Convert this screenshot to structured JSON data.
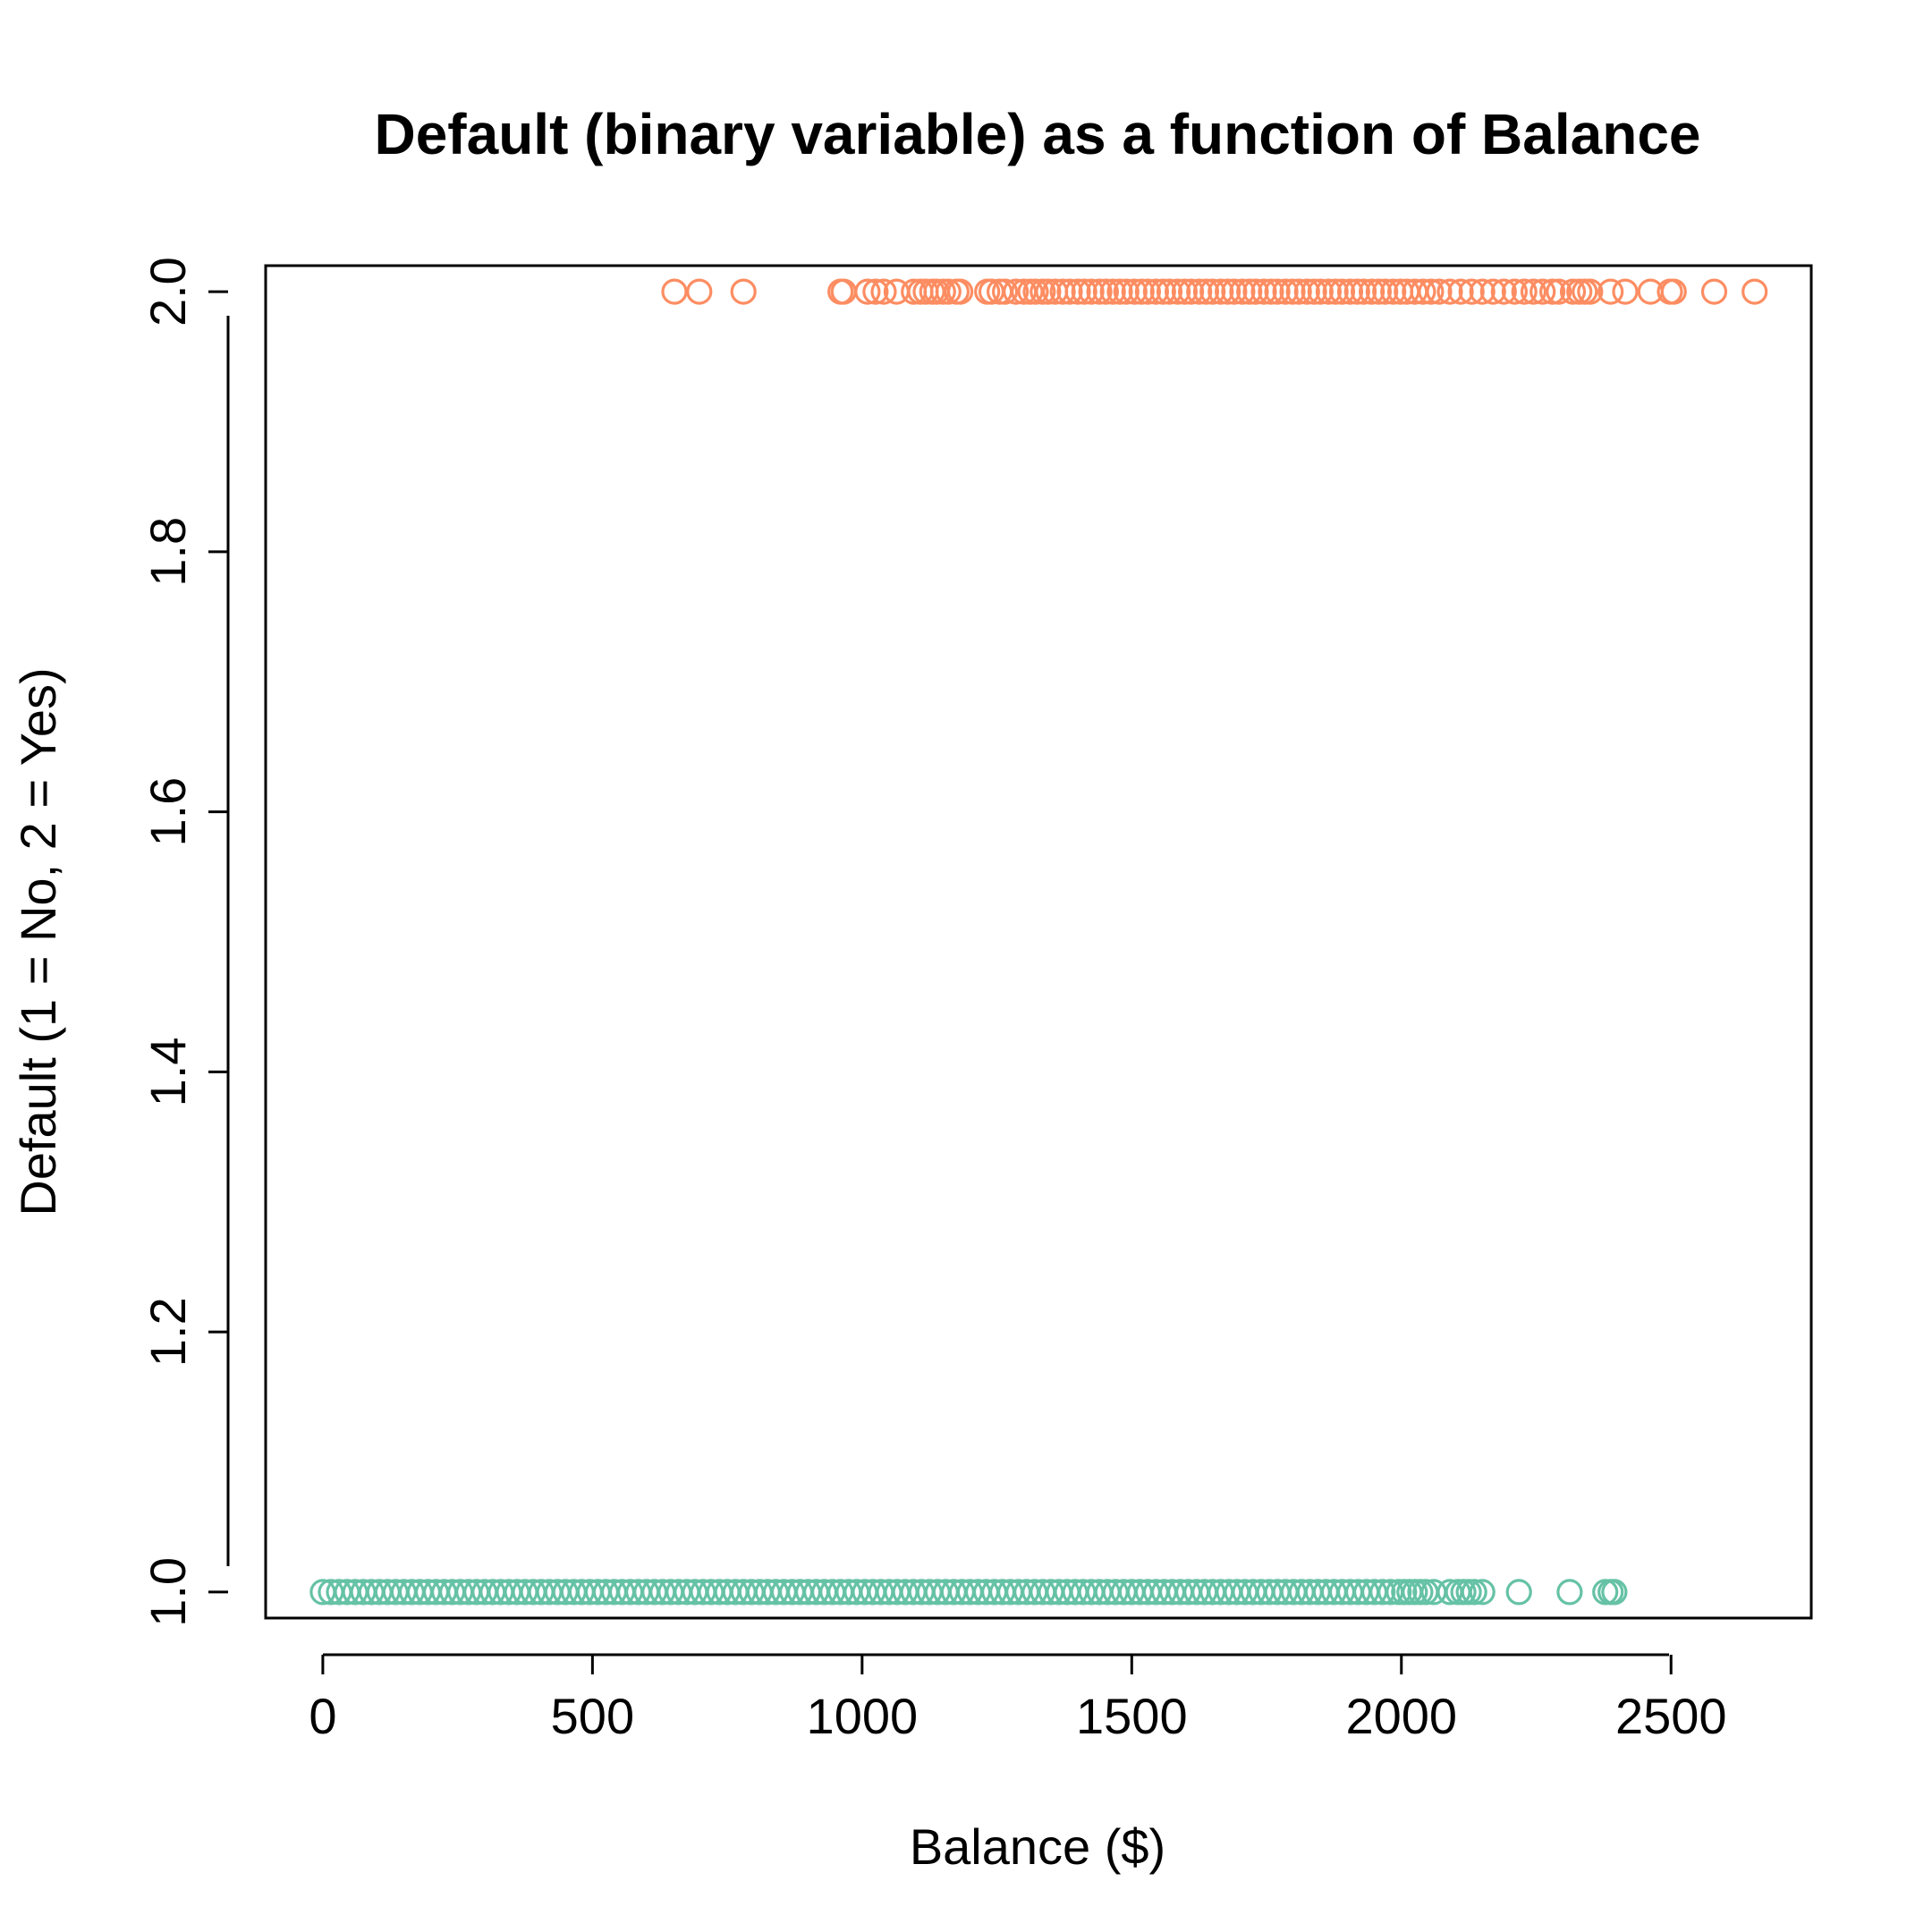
{
  "chart_data": {
    "type": "scatter",
    "title": "Default (binary variable) as a function of Balance",
    "xlabel": "Balance ($)",
    "ylabel": "Default (1 = No, 2 = Yes)",
    "xlim": [
      -106,
      2760
    ],
    "ylim": [
      0.98,
      2.02
    ],
    "xticks": [
      0,
      500,
      1000,
      1500,
      2000,
      2500
    ],
    "yticks": [
      1.0,
      1.2,
      1.4,
      1.6,
      1.8,
      2.0
    ],
    "xtick_labels": [
      "0",
      "500",
      "1000",
      "1500",
      "2000",
      "2500"
    ],
    "ytick_labels": [
      "1.0",
      "1.2",
      "1.4",
      "1.6",
      "1.8",
      "2.0"
    ],
    "grid": false,
    "legend": "none",
    "marker": "open-circle",
    "series": [
      {
        "color": "#66C2A5",
        "y": 1,
        "x": [
          0,
          15,
          30,
          45,
          60,
          75,
          90,
          105,
          120,
          135,
          150,
          165,
          180,
          195,
          210,
          225,
          240,
          255,
          270,
          285,
          300,
          315,
          330,
          345,
          360,
          375,
          390,
          405,
          420,
          435,
          450,
          465,
          480,
          495,
          510,
          525,
          540,
          555,
          570,
          585,
          600,
          615,
          630,
          645,
          660,
          675,
          690,
          705,
          720,
          735,
          750,
          765,
          780,
          795,
          810,
          825,
          840,
          855,
          870,
          885,
          900,
          915,
          930,
          945,
          960,
          975,
          990,
          1005,
          1020,
          1035,
          1050,
          1065,
          1080,
          1095,
          1110,
          1125,
          1140,
          1155,
          1170,
          1185,
          1200,
          1215,
          1230,
          1245,
          1260,
          1275,
          1290,
          1305,
          1320,
          1335,
          1350,
          1365,
          1380,
          1395,
          1410,
          1425,
          1440,
          1455,
          1470,
          1485,
          1500,
          1515,
          1530,
          1545,
          1560,
          1575,
          1590,
          1605,
          1620,
          1635,
          1650,
          1665,
          1680,
          1695,
          1710,
          1725,
          1740,
          1755,
          1770,
          1785,
          1800,
          1815,
          1830,
          1845,
          1860,
          1875,
          1890,
          1905,
          1920,
          1935,
          1950,
          1965,
          1980,
          1995,
          2005,
          2015,
          2025,
          2035,
          2045,
          2060,
          2090,
          2105,
          2115,
          2125,
          2135,
          2150,
          2218,
          2312,
          2378,
          2388,
          2395
        ]
      },
      {
        "color": "#FC8D62",
        "y": 2,
        "x": [
          652,
          698,
          780,
          960,
          966,
          1010,
          1025,
          1040,
          1064,
          1096,
          1108,
          1118,
          1130,
          1138,
          1150,
          1160,
          1175,
          1182,
          1232,
          1240,
          1255,
          1265,
          1285,
          1300,
          1312,
          1322,
          1335,
          1345,
          1358,
          1372,
          1385,
          1400,
          1412,
          1425,
          1440,
          1452,
          1465,
          1478,
          1490,
          1505,
          1518,
          1530,
          1545,
          1558,
          1570,
          1585,
          1598,
          1610,
          1625,
          1638,
          1650,
          1665,
          1678,
          1690,
          1705,
          1718,
          1730,
          1745,
          1758,
          1770,
          1785,
          1798,
          1810,
          1825,
          1838,
          1850,
          1865,
          1878,
          1890,
          1905,
          1918,
          1930,
          1945,
          1958,
          1970,
          1985,
          1998,
          2010,
          2025,
          2040,
          2055,
          2070,
          2090,
          2110,
          2130,
          2150,
          2170,
          2190,
          2210,
          2228,
          2245,
          2262,
          2280,
          2292,
          2318,
          2330,
          2340,
          2350,
          2388,
          2415,
          2462,
          2498,
          2505,
          2580,
          2655
        ]
      }
    ]
  }
}
